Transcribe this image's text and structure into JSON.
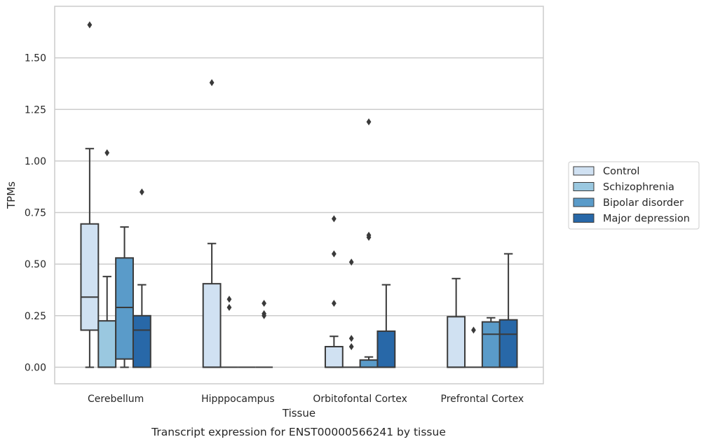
{
  "chart_data": {
    "type": "box",
    "xlabel": "Tissue",
    "ylabel": "TPMs",
    "caption": "Transcript expression for ENST00000566241 by tissue",
    "ylim": [
      -0.08,
      1.75
    ],
    "yticks": [
      0.0,
      0.25,
      0.5,
      0.75,
      1.0,
      1.25,
      1.5
    ],
    "ytick_labels": [
      "0.00",
      "0.25",
      "0.50",
      "0.75",
      "1.00",
      "1.25",
      "1.50"
    ],
    "grid": true,
    "legend_position": "right",
    "categories": [
      "Cerebellum",
      "Hipppocampus",
      "Orbitofontal Cortex",
      "Prefrontal Cortex"
    ],
    "series": [
      {
        "name": "Control",
        "color": "#d0e1f2",
        "boxes": [
          {
            "whisker_low": 0.0,
            "q1": 0.18,
            "median": 0.34,
            "q3": 0.695,
            "whisker_high": 1.06,
            "outliers": [
              1.66
            ]
          },
          {
            "whisker_low": 0.0,
            "q1": 0.0,
            "median": 0.0,
            "q3": 0.405,
            "whisker_high": 0.6,
            "outliers": [
              1.38
            ]
          },
          {
            "whisker_low": 0.0,
            "q1": 0.0,
            "median": 0.0,
            "q3": 0.1,
            "whisker_high": 0.15,
            "outliers": [
              0.31,
              0.55,
              0.72
            ]
          },
          {
            "whisker_low": 0.0,
            "q1": 0.0,
            "median": 0.0,
            "q3": 0.245,
            "whisker_high": 0.43,
            "outliers": []
          }
        ]
      },
      {
        "name": "Schizophrenia",
        "color": "#9ac8e0",
        "boxes": [
          {
            "whisker_low": 0.0,
            "q1": 0.0,
            "median": 0.0,
            "q3": 0.225,
            "whisker_high": 0.44,
            "outliers": [
              1.04
            ]
          },
          {
            "whisker_low": 0.0,
            "q1": 0.0,
            "median": 0.0,
            "q3": 0.0,
            "whisker_high": 0.0,
            "outliers": [
              0.29,
              0.33
            ]
          },
          {
            "whisker_low": 0.0,
            "q1": 0.0,
            "median": 0.0,
            "q3": 0.0,
            "whisker_high": 0.0,
            "outliers": [
              0.1,
              0.14,
              0.51
            ]
          },
          {
            "whisker_low": 0.0,
            "q1": 0.0,
            "median": 0.0,
            "q3": 0.0,
            "whisker_high": 0.0,
            "outliers": [
              0.18
            ]
          }
        ]
      },
      {
        "name": "Bipolar disorder",
        "color": "#5a9bc9",
        "boxes": [
          {
            "whisker_low": 0.0,
            "q1": 0.04,
            "median": 0.29,
            "q3": 0.53,
            "whisker_high": 0.68,
            "outliers": []
          },
          {
            "whisker_low": 0.0,
            "q1": 0.0,
            "median": 0.0,
            "q3": 0.0,
            "whisker_high": 0.0,
            "outliers": []
          },
          {
            "whisker_low": 0.0,
            "q1": 0.0,
            "median": 0.0,
            "q3": 0.035,
            "whisker_high": 0.05,
            "outliers": [
              0.63,
              0.64,
              1.19
            ]
          },
          {
            "whisker_low": 0.0,
            "q1": 0.0,
            "median": 0.16,
            "q3": 0.22,
            "whisker_high": 0.24,
            "outliers": []
          }
        ]
      },
      {
        "name": "Major depression",
        "color": "#2868a8",
        "boxes": [
          {
            "whisker_low": 0.0,
            "q1": 0.0,
            "median": 0.18,
            "q3": 0.25,
            "whisker_high": 0.4,
            "outliers": [
              0.85
            ]
          },
          {
            "whisker_low": 0.0,
            "q1": 0.0,
            "median": 0.0,
            "q3": 0.0,
            "whisker_high": 0.0,
            "outliers": [
              0.25,
              0.26,
              0.31
            ]
          },
          {
            "whisker_low": 0.0,
            "q1": 0.0,
            "median": 0.0,
            "q3": 0.175,
            "whisker_high": 0.4,
            "outliers": []
          },
          {
            "whisker_low": 0.0,
            "q1": 0.0,
            "median": 0.16,
            "q3": 0.23,
            "whisker_high": 0.55,
            "outliers": []
          }
        ]
      }
    ]
  }
}
